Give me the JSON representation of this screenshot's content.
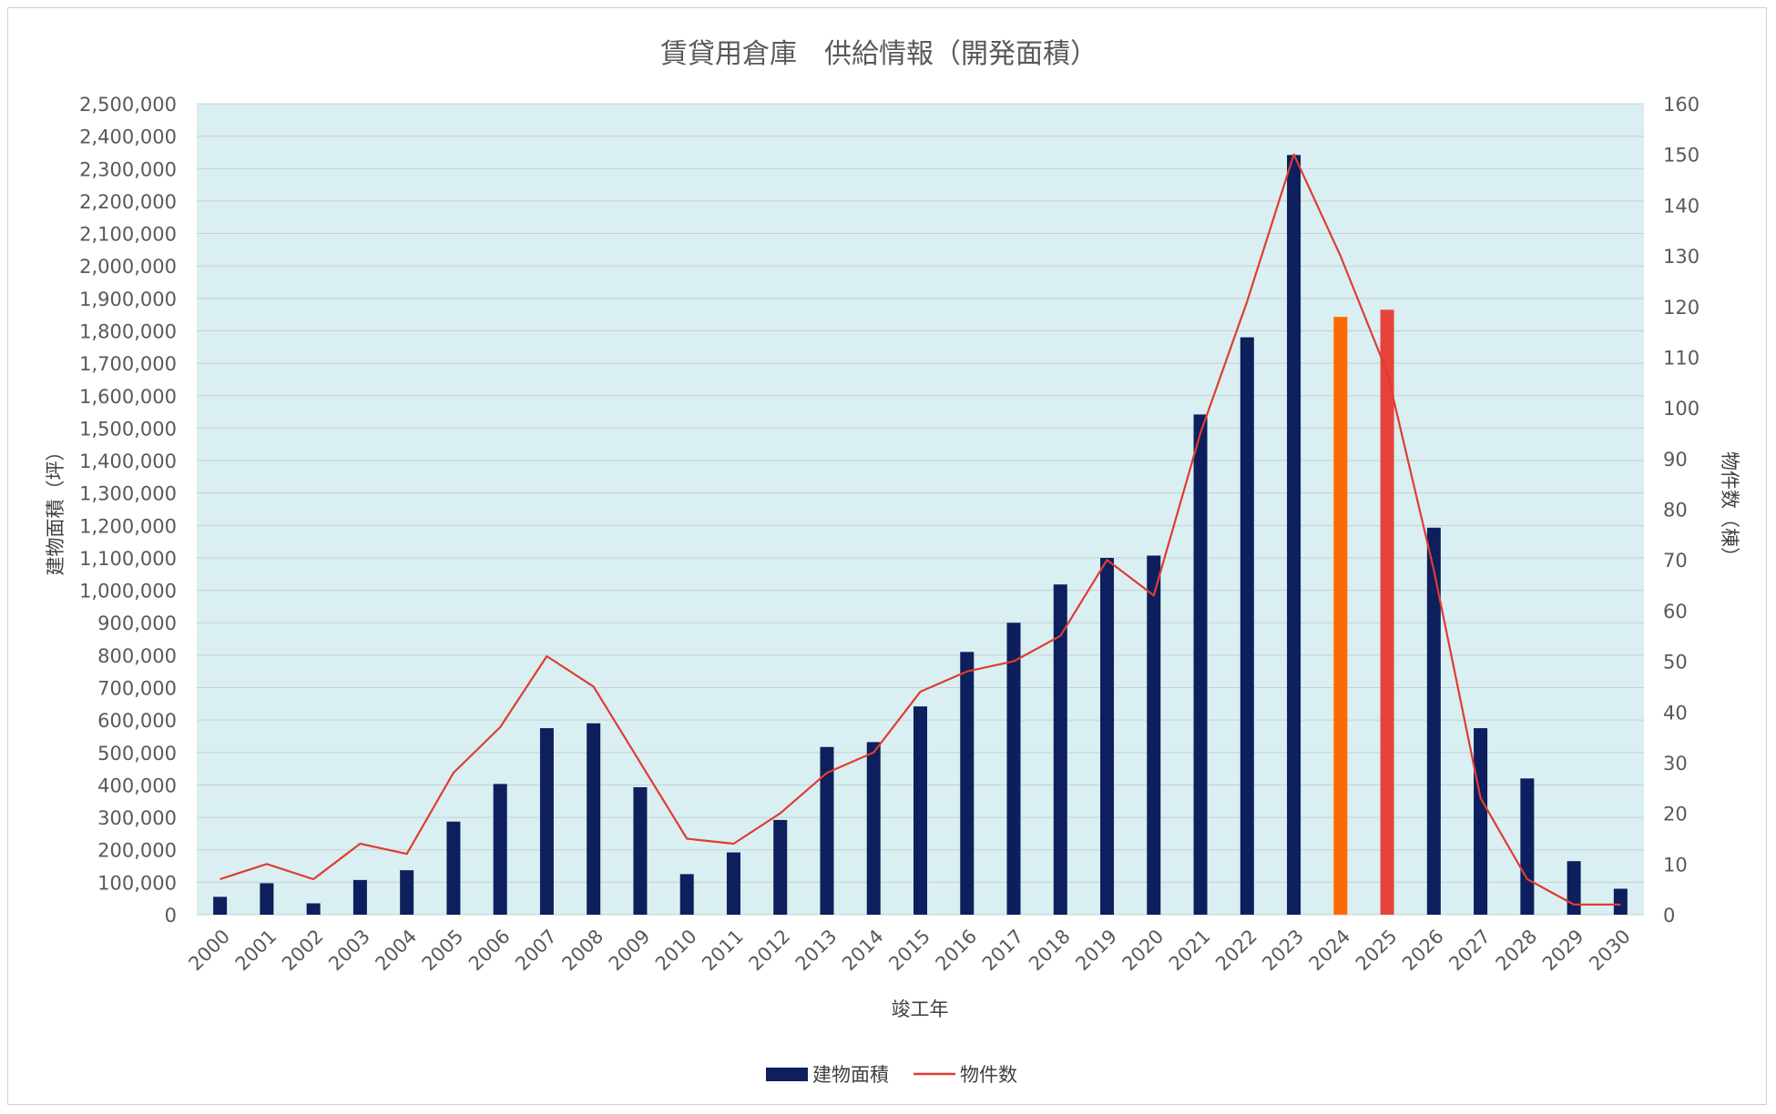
{
  "chart_data": {
    "type": "bar",
    "title": "賃貸用倉庫　供給情報（開発面積）",
    "xlabel": "竣工年",
    "ylabel": "建物面積（坪）",
    "y2label": "物件数（棟）",
    "ylim": [
      0,
      2500000
    ],
    "y2lim": [
      0,
      160
    ],
    "yticks": [
      "0",
      "100,000",
      "200,000",
      "300,000",
      "400,000",
      "500,000",
      "600,000",
      "700,000",
      "800,000",
      "900,000",
      "1,000,000",
      "1,100,000",
      "1,200,000",
      "1,300,000",
      "1,400,000",
      "1,500,000",
      "1,600,000",
      "1,700,000",
      "1,800,000",
      "1,900,000",
      "2,000,000",
      "2,100,000",
      "2,200,000",
      "2,300,000",
      "2,400,000",
      "2,500,000"
    ],
    "y2ticks": [
      "0",
      "10",
      "20",
      "30",
      "40",
      "50",
      "60",
      "70",
      "80",
      "90",
      "100",
      "110",
      "120",
      "130",
      "140",
      "150",
      "160"
    ],
    "categories": [
      "2000",
      "2001",
      "2002",
      "2003",
      "2004",
      "2005",
      "2006",
      "2007",
      "2008",
      "2009",
      "2010",
      "2011",
      "2012",
      "2013",
      "2014",
      "2015",
      "2016",
      "2017",
      "2018",
      "2019",
      "2020",
      "2021",
      "2022",
      "2023",
      "2024",
      "2025",
      "2026",
      "2027",
      "2028",
      "2029",
      "2030"
    ],
    "grid": true,
    "legend_position": "bottom",
    "series": [
      {
        "name": "建物面積",
        "type": "bar",
        "axis": "left",
        "color": "#0d1f5c",
        "highlight_colors": {
          "2024": "#ff6a00",
          "2025": "#e8433a"
        },
        "values": [
          55000,
          97000,
          35000,
          107000,
          137000,
          287000,
          403000,
          575000,
          590000,
          393000,
          125000,
          192000,
          292000,
          517000,
          532000,
          642000,
          810000,
          900000,
          1018000,
          1100000,
          1107000,
          1542000,
          1780000,
          2342000,
          1843000,
          1865000,
          1193000,
          575000,
          420000,
          165000,
          80000
        ]
      },
      {
        "name": "物件数",
        "type": "line",
        "axis": "right",
        "color": "#e03c31",
        "values": [
          7,
          10,
          7,
          14,
          12,
          28,
          37,
          51,
          45,
          30,
          15,
          14,
          20,
          28,
          32,
          44,
          48,
          50,
          55,
          70,
          63,
          95,
          121,
          150,
          130,
          107,
          68,
          23,
          7,
          2,
          2
        ]
      }
    ]
  },
  "colors": {
    "plot_background": "#d9eff2",
    "gridline": "#c9cfd3"
  }
}
